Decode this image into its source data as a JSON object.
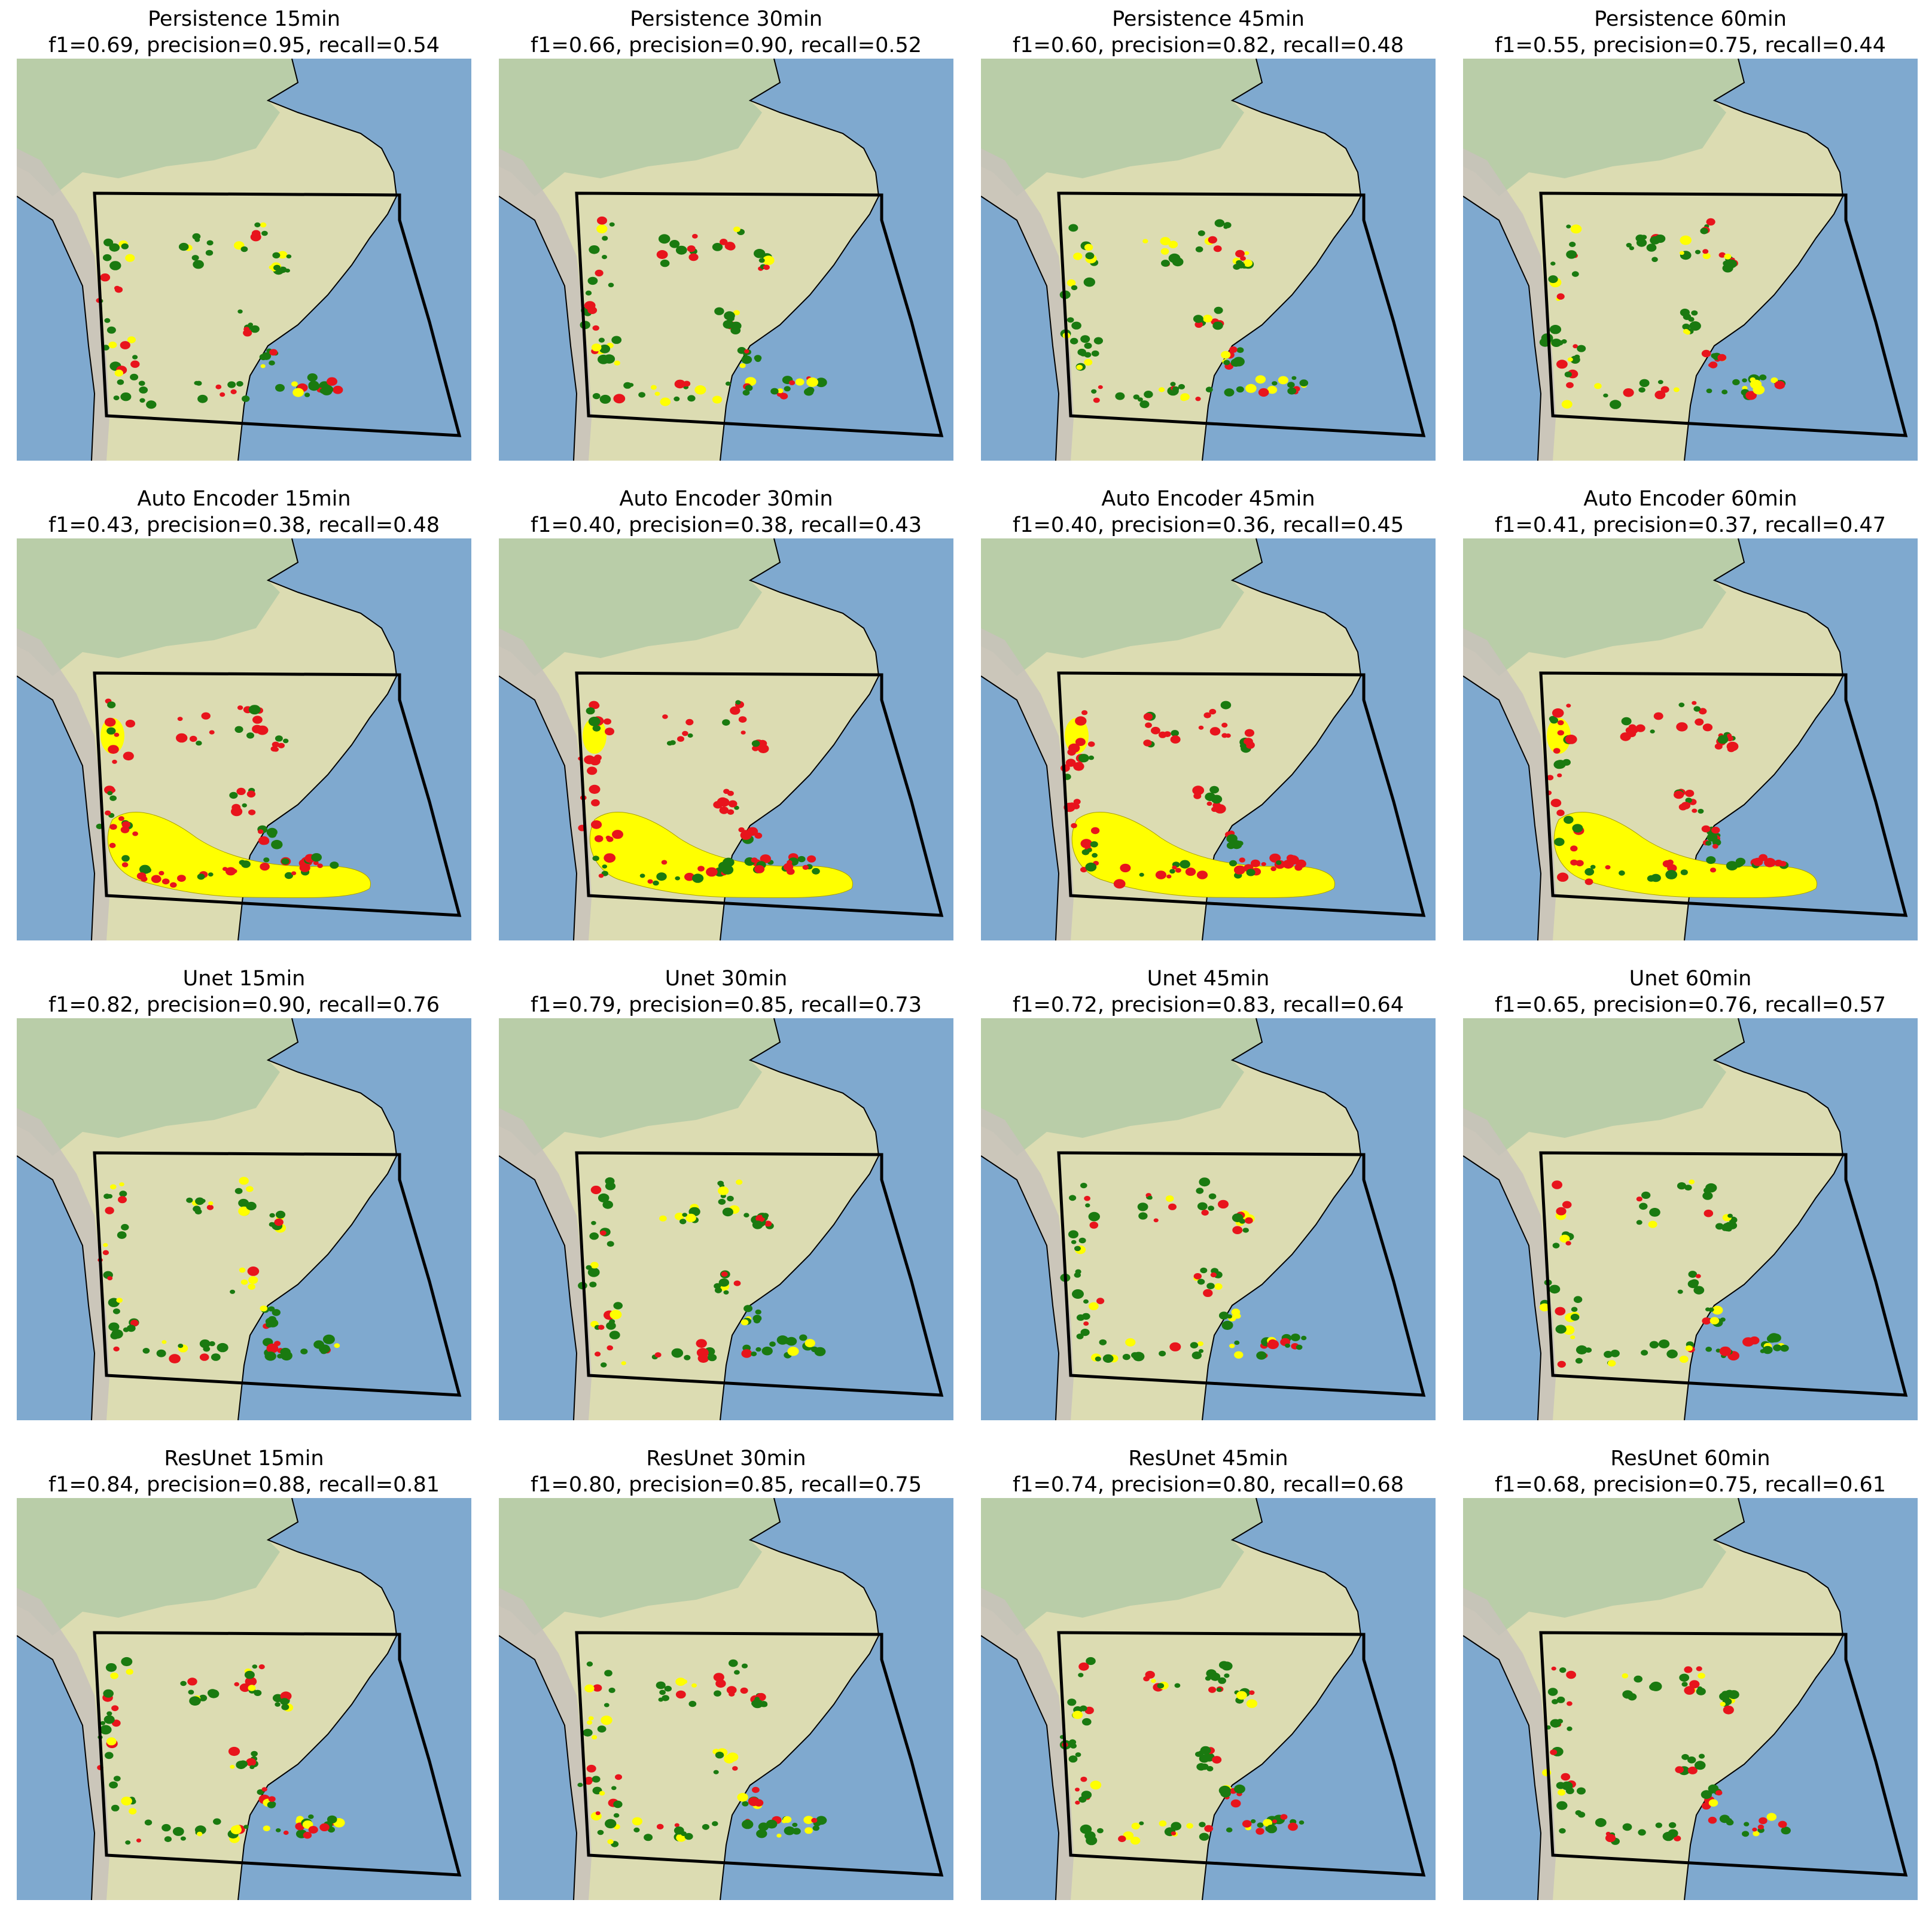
{
  "figure": {
    "rows": [
      {
        "model": "Persistence",
        "panels": [
          {
            "title": "Persistence 15min",
            "metrics": "f1=0.69, precision=0.95, recall=0.54",
            "f1": 0.69,
            "precision": 0.95,
            "recall": 0.54
          },
          {
            "title": "Persistence 30min",
            "metrics": "f1=0.66, precision=0.90, recall=0.52",
            "f1": 0.66,
            "precision": 0.9,
            "recall": 0.52
          },
          {
            "title": "Persistence 45min",
            "metrics": "f1=0.60, precision=0.82, recall=0.48",
            "f1": 0.6,
            "precision": 0.82,
            "recall": 0.48
          },
          {
            "title": "Persistence 60min",
            "metrics": "f1=0.55, precision=0.75, recall=0.44",
            "f1": 0.55,
            "precision": 0.75,
            "recall": 0.44
          }
        ]
      },
      {
        "model": "Auto Encoder",
        "panels": [
          {
            "title": "Auto Encoder 15min",
            "metrics": "f1=0.43, precision=0.38, recall=0.48",
            "f1": 0.43,
            "precision": 0.38,
            "recall": 0.48
          },
          {
            "title": "Auto Encoder 30min",
            "metrics": "f1=0.40, precision=0.38, recall=0.43",
            "f1": 0.4,
            "precision": 0.38,
            "recall": 0.43
          },
          {
            "title": "Auto Encoder 45min",
            "metrics": "f1=0.40, precision=0.36, recall=0.45",
            "f1": 0.4,
            "precision": 0.36,
            "recall": 0.45
          },
          {
            "title": "Auto Encoder 60min",
            "metrics": "f1=0.41, precision=0.37, recall=0.47",
            "f1": 0.41,
            "precision": 0.37,
            "recall": 0.47
          }
        ]
      },
      {
        "model": "Unet",
        "panels": [
          {
            "title": "Unet 15min",
            "metrics": "f1=0.82, precision=0.90, recall=0.76",
            "f1": 0.82,
            "precision": 0.9,
            "recall": 0.76
          },
          {
            "title": "Unet 30min",
            "metrics": "f1=0.79, precision=0.85, recall=0.73",
            "f1": 0.79,
            "precision": 0.85,
            "recall": 0.73
          },
          {
            "title": "Unet 45min",
            "metrics": "f1=0.72, precision=0.83, recall=0.64",
            "f1": 0.72,
            "precision": 0.83,
            "recall": 0.64
          },
          {
            "title": "Unet 60min",
            "metrics": "f1=0.65, precision=0.76, recall=0.57",
            "f1": 0.65,
            "precision": 0.76,
            "recall": 0.57
          }
        ]
      },
      {
        "model": "ResUnet",
        "panels": [
          {
            "title": "ResUnet 15min",
            "metrics": "f1=0.84, precision=0.88, recall=0.81",
            "f1": 0.84,
            "precision": 0.88,
            "recall": 0.81
          },
          {
            "title": "ResUnet 30min",
            "metrics": "f1=0.80, precision=0.85, recall=0.75",
            "f1": 0.8,
            "precision": 0.85,
            "recall": 0.75
          },
          {
            "title": "ResUnet 45min",
            "metrics": "f1=0.74, precision=0.80, recall=0.68",
            "f1": 0.74,
            "precision": 0.8,
            "recall": 0.68
          },
          {
            "title": "ResUnet 60min",
            "metrics": "f1=0.68, precision=0.75, recall=0.61",
            "f1": 0.68,
            "precision": 0.75,
            "recall": 0.61
          }
        ]
      }
    ]
  },
  "colors": {
    "ocean": "#7fa9cf",
    "land": "#dcdcb2",
    "forest": "#b3caa6",
    "mountains": "#c8c2bb",
    "coastline": "#000000",
    "domain_border": "#000000",
    "hit": "#1a7a10",
    "miss": "#e8141c",
    "false_alarm": "#ffff00"
  }
}
